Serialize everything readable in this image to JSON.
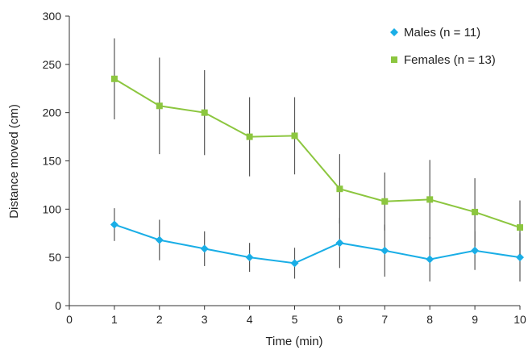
{
  "chart_data": {
    "type": "line",
    "title": "",
    "xlabel": "Time (min)",
    "ylabel": "Distance moved (cm)",
    "xlim": [
      0,
      10
    ],
    "ylim": [
      0,
      300
    ],
    "xticks": [
      0,
      1,
      2,
      3,
      4,
      5,
      6,
      7,
      8,
      9,
      10
    ],
    "yticks": [
      0,
      50,
      100,
      150,
      200,
      250,
      300
    ],
    "grid": false,
    "legend_position": "top-right",
    "error_bars": true,
    "series": [
      {
        "name": "Males (n = 11)",
        "color": "#1aaee6",
        "marker": "diamond",
        "x": [
          1,
          2,
          3,
          4,
          5,
          6,
          7,
          8,
          9,
          10
        ],
        "values": [
          84,
          68,
          59,
          50,
          44,
          65,
          57,
          48,
          57,
          50
        ],
        "errors": [
          17,
          21,
          18,
          15,
          16,
          26,
          27,
          23,
          20,
          25
        ]
      },
      {
        "name": "Females (n = 13)",
        "color": "#8cc63f",
        "marker": "square",
        "x": [
          1,
          2,
          3,
          4,
          5,
          6,
          7,
          8,
          9,
          10
        ],
        "values": [
          235,
          207,
          200,
          175,
          176,
          121,
          108,
          110,
          97,
          81
        ],
        "errors": [
          42,
          50,
          44,
          41,
          40,
          36,
          30,
          41,
          35,
          28
        ]
      }
    ]
  }
}
